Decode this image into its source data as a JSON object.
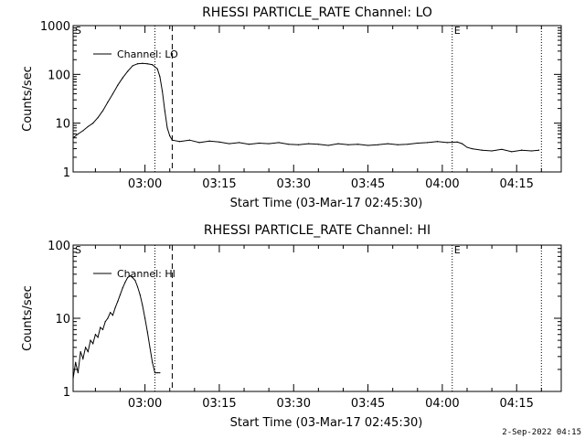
{
  "footer": "2-Sep-2022 04:15",
  "chart_data": [
    {
      "type": "line",
      "title": "RHESSI PARTICLE_RATE Channel: LO",
      "xlabel": "Start Time (03-Mar-17 02:45:30)",
      "ylabel": "Counts/sec",
      "xlim": [
        "02:45:30",
        "04:24:00"
      ],
      "ylim": [
        1,
        1000
      ],
      "yscale": "log",
      "xticks": [
        "03:00",
        "03:15",
        "03:30",
        "03:45",
        "04:00",
        "04:15"
      ],
      "yticks": [
        "1",
        "10",
        "100",
        "1000"
      ],
      "legend": {
        "label": "Channel: LO",
        "placement": "top-left"
      },
      "markers": [
        {
          "text": "S",
          "time": "02:45:30"
        },
        {
          "text": "E",
          "time": "04:02:00"
        }
      ],
      "vlines": [
        {
          "time": "03:02:00",
          "style": "dotted"
        },
        {
          "time": "03:05:30",
          "style": "dashed"
        },
        {
          "time": "04:02:00",
          "style": "dotted"
        },
        {
          "time": "04:20:00",
          "style": "dotted"
        }
      ],
      "series": [
        {
          "name": "Channel: LO",
          "x": [
            "02:45:30",
            "02:46:30",
            "02:47:30",
            "02:48:30",
            "02:49:30",
            "02:50:30",
            "02:51:30",
            "02:52:30",
            "02:53:30",
            "02:54:30",
            "02:55:30",
            "02:56:30",
            "02:57:30",
            "02:58:30",
            "02:59:30",
            "03:00:30",
            "03:01:30",
            "03:02:30",
            "03:03:00",
            "03:03:30",
            "03:04:00",
            "03:04:30",
            "03:05:00",
            "03:05:30",
            "03:07:00",
            "03:09:00",
            "03:11:00",
            "03:13:00",
            "03:15:00",
            "03:17:00",
            "03:19:00",
            "03:21:00",
            "03:23:00",
            "03:25:00",
            "03:27:00",
            "03:29:00",
            "03:31:00",
            "03:33:00",
            "03:35:00",
            "03:37:00",
            "03:39:00",
            "03:41:00",
            "03:43:00",
            "03:45:00",
            "03:47:00",
            "03:49:00",
            "03:51:00",
            "03:53:00",
            "03:55:00",
            "03:57:00",
            "03:59:00",
            "04:01:00",
            "04:03:00",
            "04:04:00",
            "04:05:00",
            "04:06:00",
            "04:08:00",
            "04:10:00",
            "04:12:00",
            "04:14:00",
            "04:16:00",
            "04:18:00",
            "04:19:30"
          ],
          "values": [
            5,
            6,
            7,
            8.5,
            10,
            13,
            18,
            27,
            40,
            60,
            85,
            115,
            150,
            165,
            168,
            165,
            158,
            130,
            90,
            45,
            18,
            8,
            5.5,
            4.5,
            4.2,
            4.5,
            4,
            4.3,
            4.1,
            3.8,
            4,
            3.7,
            3.9,
            3.8,
            4,
            3.7,
            3.6,
            3.8,
            3.7,
            3.5,
            3.8,
            3.6,
            3.7,
            3.5,
            3.6,
            3.8,
            3.6,
            3.7,
            3.9,
            4,
            4.2,
            4,
            4.1,
            3.8,
            3.2,
            3,
            2.8,
            2.7,
            2.9,
            2.6,
            2.8,
            2.7,
            2.8
          ]
        }
      ]
    },
    {
      "type": "line",
      "title": "RHESSI PARTICLE_RATE Channel: HI",
      "xlabel": "Start Time (03-Mar-17 02:45:30)",
      "ylabel": "Counts/sec",
      "xlim": [
        "02:45:30",
        "04:24:00"
      ],
      "ylim": [
        1,
        100
      ],
      "yscale": "log",
      "xticks": [
        "03:00",
        "03:15",
        "03:30",
        "03:45",
        "04:00",
        "04:15"
      ],
      "yticks": [
        "1",
        "10",
        "100"
      ],
      "legend": {
        "label": "Channel: HI",
        "placement": "top-left"
      },
      "markers": [
        {
          "text": "S",
          "time": "02:45:30"
        },
        {
          "text": "E",
          "time": "04:02:00"
        }
      ],
      "vlines": [
        {
          "time": "03:02:00",
          "style": "dotted"
        },
        {
          "time": "03:05:30",
          "style": "dashed"
        },
        {
          "time": "04:02:00",
          "style": "dotted"
        },
        {
          "time": "04:20:00",
          "style": "dotted"
        }
      ],
      "series": [
        {
          "name": "Channel: HI",
          "x": [
            "02:45:30",
            "02:46:00",
            "02:46:30",
            "02:47:00",
            "02:47:30",
            "02:48:00",
            "02:48:30",
            "02:49:00",
            "02:49:30",
            "02:50:00",
            "02:50:30",
            "02:51:00",
            "02:51:30",
            "02:52:00",
            "02:52:30",
            "02:53:00",
            "02:53:30",
            "02:54:00",
            "02:54:30",
            "02:55:00",
            "02:55:30",
            "02:56:00",
            "02:56:30",
            "02:57:00",
            "02:57:30",
            "02:58:00",
            "02:58:30",
            "02:59:00",
            "02:59:30",
            "03:00:00",
            "03:00:30",
            "03:01:00",
            "03:01:30",
            "03:02:00",
            "03:02:30",
            "03:03:00"
          ],
          "values": [
            1.5,
            2.5,
            1.8,
            3.5,
            2.8,
            4,
            3.5,
            5,
            4.5,
            6,
            5.5,
            7.5,
            7,
            9,
            10,
            12,
            11,
            14,
            17,
            21,
            26,
            31,
            36,
            38,
            36,
            33,
            27,
            21,
            15,
            10,
            6.5,
            4,
            2.5,
            1.8,
            1.8,
            1.8
          ]
        }
      ]
    }
  ]
}
